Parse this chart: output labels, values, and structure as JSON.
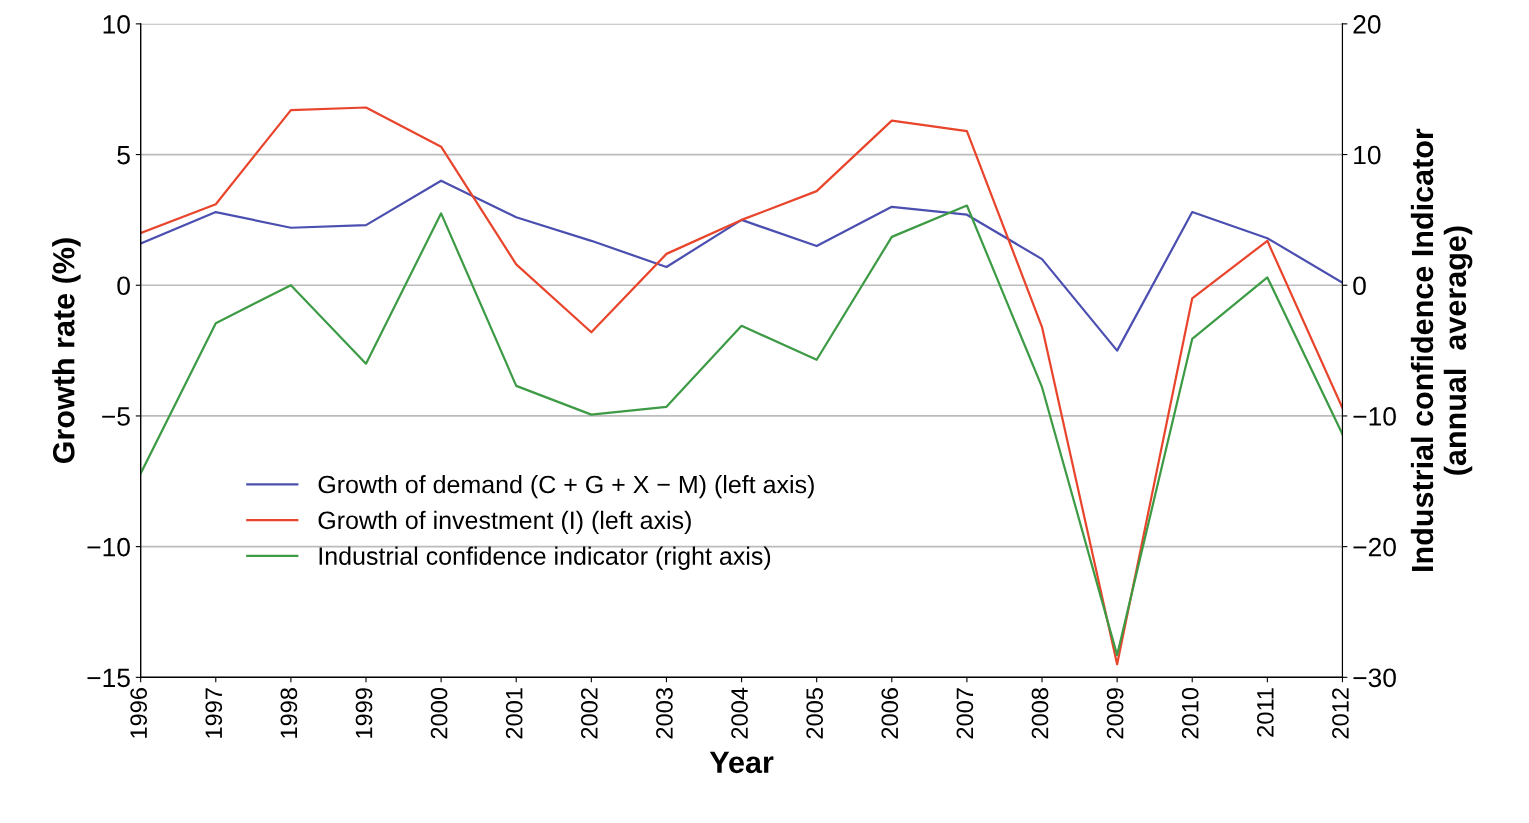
{
  "chart_data": {
    "type": "line",
    "xlabel": "Year",
    "ylabel": "Growth rate (%)",
    "y2label": "Industrial confidence Indicator\n(annual  average)",
    "categories": [
      "1996",
      "1997",
      "1998",
      "1999",
      "2000",
      "2001",
      "2002",
      "2003",
      "2004",
      "2005",
      "2006",
      "2007",
      "2008",
      "2009",
      "2010",
      "2011",
      "2012"
    ],
    "series": [
      {
        "name": "Growth of demand (C + G + X − M) (left axis)",
        "color": "#4b4fb0",
        "values": [
          1.6,
          2.8,
          2.2,
          2.3,
          4.0,
          2.6,
          1.7,
          0.7,
          2.5,
          1.5,
          3.0,
          2.7,
          1.0,
          -2.5,
          2.8,
          1.8,
          0.1
        ]
      },
      {
        "name": "Growth of investment (I) (left axis)",
        "color": "#e8452c",
        "values": [
          2.0,
          3.1,
          6.7,
          6.8,
          5.3,
          0.8,
          -1.8,
          1.2,
          2.5,
          3.6,
          6.3,
          5.9,
          -1.6,
          -14.5,
          -0.5,
          1.7,
          -4.7
        ]
      },
      {
        "name": "Industrial confidence indicator (right axis)",
        "color": "#3d9a45",
        "axis": "y2",
        "values": [
          -14.4,
          -2.9,
          0.0,
          -6.0,
          5.5,
          -7.7,
          -9.9,
          -9.3,
          -3.1,
          -5.7,
          3.7,
          6.1,
          -7.8,
          -28.3,
          -4.1,
          0.6,
          -11.4
        ]
      }
    ],
    "ylim": [
      -15,
      10
    ],
    "yticks": [
      {
        "value": -15,
        "label": "−15"
      },
      {
        "value": -10,
        "label": "−10"
      },
      {
        "value": -5,
        "label": "−5"
      },
      0,
      5,
      10
    ],
    "y2lim": [
      -30,
      20
    ],
    "y2ticks": [
      {
        "value": -30,
        "label": "−30"
      },
      {
        "value": -20,
        "label": "−20"
      },
      {
        "value": -10,
        "label": "−10"
      },
      0,
      10,
      20
    ],
    "grid": "y",
    "legend": "bottom left",
    "marker": "none",
    "line_style": "solid"
  }
}
